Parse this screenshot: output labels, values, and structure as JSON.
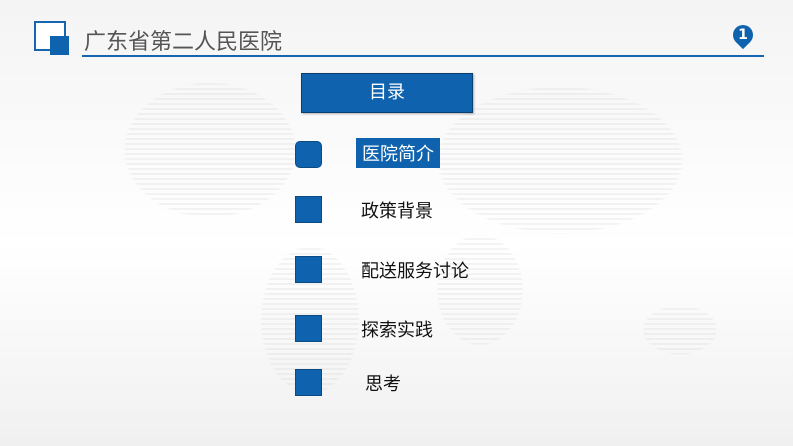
{
  "header": {
    "title": "广东省第二人民医院",
    "page_number": "1"
  },
  "toc": {
    "heading": "目录",
    "items": [
      {
        "label": "医院简介",
        "active": true
      },
      {
        "label": "政策背景"
      },
      {
        "label": "配送服务讨论"
      },
      {
        "label": "探索实践"
      },
      {
        "label": "思考"
      }
    ]
  },
  "colors": {
    "accent": "#0f62ad"
  }
}
